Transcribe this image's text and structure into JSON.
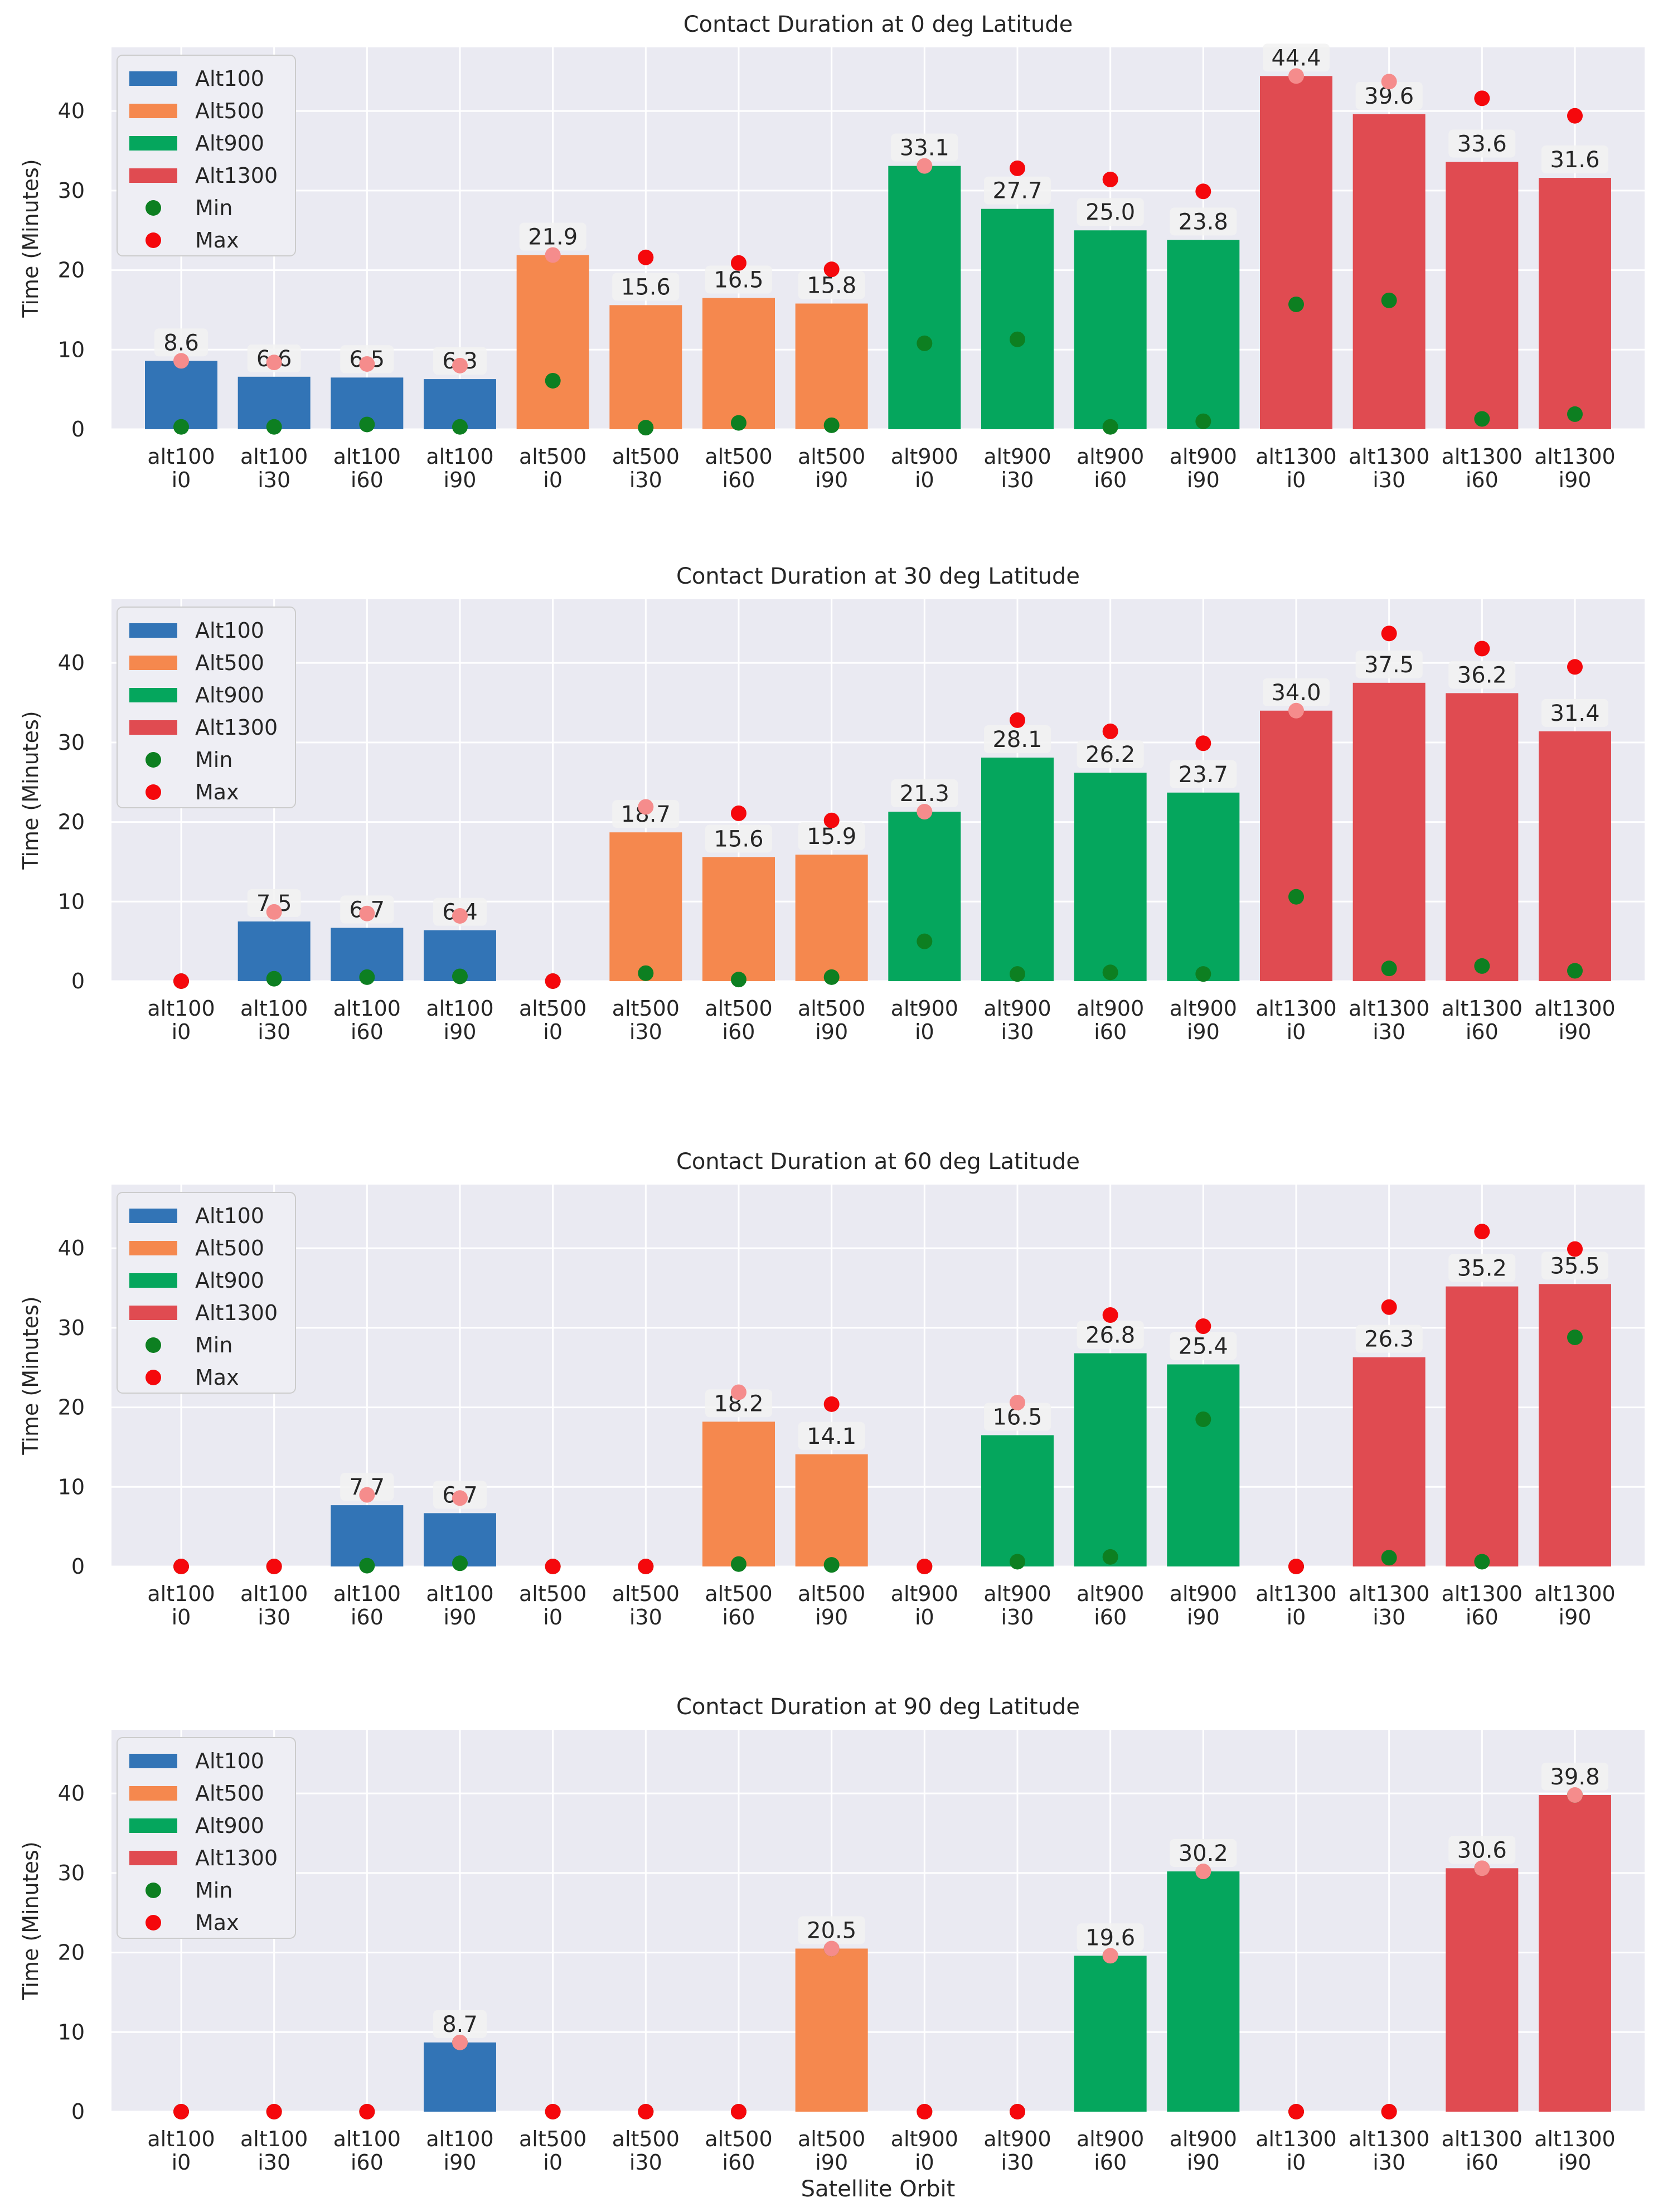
{
  "chart_data": [
    {
      "type": "bar",
      "title": "Contact Duration at 0 deg Latitude",
      "ylabel": "Time (Minutes)",
      "xlabel": "",
      "ylim": [
        0,
        48
      ],
      "yticks": [
        0,
        10,
        20,
        30,
        40
      ],
      "categories": [
        [
          "alt100",
          "i0"
        ],
        [
          "alt100",
          "i30"
        ],
        [
          "alt100",
          "i60"
        ],
        [
          "alt100",
          "i90"
        ],
        [
          "alt500",
          "i0"
        ],
        [
          "alt500",
          "i30"
        ],
        [
          "alt500",
          "i60"
        ],
        [
          "alt500",
          "i90"
        ],
        [
          "alt900",
          "i0"
        ],
        [
          "alt900",
          "i30"
        ],
        [
          "alt900",
          "i60"
        ],
        [
          "alt900",
          "i90"
        ],
        [
          "alt1300",
          "i0"
        ],
        [
          "alt1300",
          "i30"
        ],
        [
          "alt1300",
          "i60"
        ],
        [
          "alt1300",
          "i90"
        ]
      ],
      "groups": [
        0,
        0,
        0,
        0,
        1,
        1,
        1,
        1,
        2,
        2,
        2,
        2,
        3,
        3,
        3,
        3
      ],
      "values": [
        8.6,
        6.6,
        6.5,
        6.3,
        21.9,
        15.6,
        16.5,
        15.8,
        33.1,
        27.7,
        25.0,
        23.8,
        44.4,
        39.6,
        33.6,
        31.6
      ],
      "value_labels": [
        "8.6",
        "6.6",
        "6.5",
        "6.3",
        "21.9",
        "15.6",
        "16.5",
        "15.8",
        "33.1",
        "27.7",
        "25.0",
        "23.8",
        "44.4",
        "39.6",
        "33.6",
        "31.6"
      ],
      "min": [
        0.3,
        0.3,
        0.6,
        0.3,
        6.1,
        0.2,
        0.8,
        0.5,
        10.8,
        11.3,
        0.3,
        1.0,
        15.7,
        16.2,
        1.3,
        1.9
      ],
      "max": [
        8.6,
        8.4,
        8.2,
        8.0,
        21.9,
        21.6,
        20.9,
        20.1,
        33.1,
        32.8,
        31.4,
        29.9,
        44.4,
        43.7,
        41.6,
        39.4
      ]
    },
    {
      "type": "bar",
      "title": "Contact Duration at 30 deg Latitude",
      "ylabel": "Time (Minutes)",
      "xlabel": "",
      "ylim": [
        0,
        48
      ],
      "yticks": [
        0,
        10,
        20,
        30,
        40
      ],
      "categories": [
        [
          "alt100",
          "i0"
        ],
        [
          "alt100",
          "i30"
        ],
        [
          "alt100",
          "i60"
        ],
        [
          "alt100",
          "i90"
        ],
        [
          "alt500",
          "i0"
        ],
        [
          "alt500",
          "i30"
        ],
        [
          "alt500",
          "i60"
        ],
        [
          "alt500",
          "i90"
        ],
        [
          "alt900",
          "i0"
        ],
        [
          "alt900",
          "i30"
        ],
        [
          "alt900",
          "i60"
        ],
        [
          "alt900",
          "i90"
        ],
        [
          "alt1300",
          "i0"
        ],
        [
          "alt1300",
          "i30"
        ],
        [
          "alt1300",
          "i60"
        ],
        [
          "alt1300",
          "i90"
        ]
      ],
      "groups": [
        0,
        0,
        0,
        0,
        1,
        1,
        1,
        1,
        2,
        2,
        2,
        2,
        3,
        3,
        3,
        3
      ],
      "values": [
        0,
        7.5,
        6.7,
        6.4,
        0,
        18.7,
        15.6,
        15.9,
        21.3,
        28.1,
        26.2,
        23.7,
        34.0,
        37.5,
        36.2,
        31.4
      ],
      "value_labels": [
        "",
        "7.5",
        "6.7",
        "6.4",
        "",
        "18.7",
        "15.6",
        "15.9",
        "21.3",
        "28.1",
        "26.2",
        "23.7",
        "34.0",
        "37.5",
        "36.2",
        "31.4"
      ],
      "min": [
        0,
        0.3,
        0.5,
        0.6,
        0,
        1.0,
        0.2,
        0.5,
        5.0,
        0.9,
        1.1,
        0.9,
        10.6,
        1.6,
        1.9,
        1.3
      ],
      "max": [
        0,
        8.7,
        8.5,
        8.2,
        0,
        21.9,
        21.1,
        20.2,
        21.3,
        32.8,
        31.4,
        29.9,
        34.0,
        43.7,
        41.8,
        39.5
      ]
    },
    {
      "type": "bar",
      "title": "Contact Duration at 60 deg Latitude",
      "ylabel": "Time (Minutes)",
      "xlabel": "",
      "ylim": [
        0,
        48
      ],
      "yticks": [
        0,
        10,
        20,
        30,
        40
      ],
      "categories": [
        [
          "alt100",
          "i0"
        ],
        [
          "alt100",
          "i30"
        ],
        [
          "alt100",
          "i60"
        ],
        [
          "alt100",
          "i90"
        ],
        [
          "alt500",
          "i0"
        ],
        [
          "alt500",
          "i30"
        ],
        [
          "alt500",
          "i60"
        ],
        [
          "alt500",
          "i90"
        ],
        [
          "alt900",
          "i0"
        ],
        [
          "alt900",
          "i30"
        ],
        [
          "alt900",
          "i60"
        ],
        [
          "alt900",
          "i90"
        ],
        [
          "alt1300",
          "i0"
        ],
        [
          "alt1300",
          "i30"
        ],
        [
          "alt1300",
          "i60"
        ],
        [
          "alt1300",
          "i90"
        ]
      ],
      "groups": [
        0,
        0,
        0,
        0,
        1,
        1,
        1,
        1,
        2,
        2,
        2,
        2,
        3,
        3,
        3,
        3
      ],
      "values": [
        0,
        0,
        7.7,
        6.7,
        0,
        0,
        18.2,
        14.1,
        0,
        16.5,
        26.8,
        25.4,
        0,
        26.3,
        35.2,
        35.5
      ],
      "value_labels": [
        "",
        "",
        "7.7",
        "6.7",
        "",
        "",
        "18.2",
        "14.1",
        "",
        "16.5",
        "26.8",
        "25.4",
        "",
        "26.3",
        "35.2",
        "35.5"
      ],
      "min": [
        0,
        0,
        0.1,
        0.4,
        0,
        0,
        0.3,
        0.2,
        0,
        0.6,
        1.2,
        18.5,
        0,
        1.1,
        0.6,
        28.8
      ],
      "max": [
        0,
        0,
        9.0,
        8.6,
        0,
        0,
        21.9,
        20.4,
        0,
        20.6,
        31.6,
        30.2,
        0,
        32.6,
        42.1,
        39.9
      ]
    },
    {
      "type": "bar",
      "title": "Contact Duration at 90 deg Latitude",
      "ylabel": "Time (Minutes)",
      "xlabel": "Satellite Orbit",
      "ylim": [
        0,
        48
      ],
      "yticks": [
        0,
        10,
        20,
        30,
        40
      ],
      "categories": [
        [
          "alt100",
          "i0"
        ],
        [
          "alt100",
          "i30"
        ],
        [
          "alt100",
          "i60"
        ],
        [
          "alt100",
          "i90"
        ],
        [
          "alt500",
          "i0"
        ],
        [
          "alt500",
          "i30"
        ],
        [
          "alt500",
          "i60"
        ],
        [
          "alt500",
          "i90"
        ],
        [
          "alt900",
          "i0"
        ],
        [
          "alt900",
          "i30"
        ],
        [
          "alt900",
          "i60"
        ],
        [
          "alt900",
          "i90"
        ],
        [
          "alt1300",
          "i0"
        ],
        [
          "alt1300",
          "i30"
        ],
        [
          "alt1300",
          "i60"
        ],
        [
          "alt1300",
          "i90"
        ]
      ],
      "groups": [
        0,
        0,
        0,
        0,
        1,
        1,
        1,
        1,
        2,
        2,
        2,
        2,
        3,
        3,
        3,
        3
      ],
      "values": [
        0,
        0,
        0,
        8.7,
        0,
        0,
        0,
        20.5,
        0,
        0,
        19.6,
        30.2,
        0,
        0,
        30.6,
        39.8
      ],
      "value_labels": [
        "",
        "",
        "",
        "8.7",
        "",
        "",
        "",
        "20.5",
        "",
        "",
        "19.6",
        "30.2",
        "",
        "",
        "30.6",
        "39.8"
      ],
      "min": [
        0,
        0,
        0,
        8.7,
        0,
        0,
        0,
        20.5,
        0,
        0,
        19.6,
        30.2,
        0,
        0,
        30.6,
        39.8
      ],
      "max": [
        0,
        0,
        0,
        8.7,
        0,
        0,
        0,
        20.5,
        0,
        0,
        19.6,
        30.2,
        0,
        0,
        30.6,
        39.8
      ]
    }
  ],
  "legend": [
    {
      "label": "Alt100",
      "kind": "bar"
    },
    {
      "label": "Alt500",
      "kind": "bar"
    },
    {
      "label": "Alt900",
      "kind": "bar"
    },
    {
      "label": "Alt1300",
      "kind": "bar"
    },
    {
      "label": "Min",
      "kind": "dot"
    },
    {
      "label": "Max",
      "kind": "dot"
    }
  ],
  "colors": {
    "group_colors": [
      "#3274b6",
      "#f5884e",
      "#05a65d",
      "#e04b51"
    ],
    "min_dot": "#0d7f21",
    "max_dot": "#f5080c",
    "max_dot_on_label": "#f58c8c",
    "panel_bg": "#eaeaf2",
    "grid": "#ffffff",
    "label_box": "#f2f2f2"
  }
}
